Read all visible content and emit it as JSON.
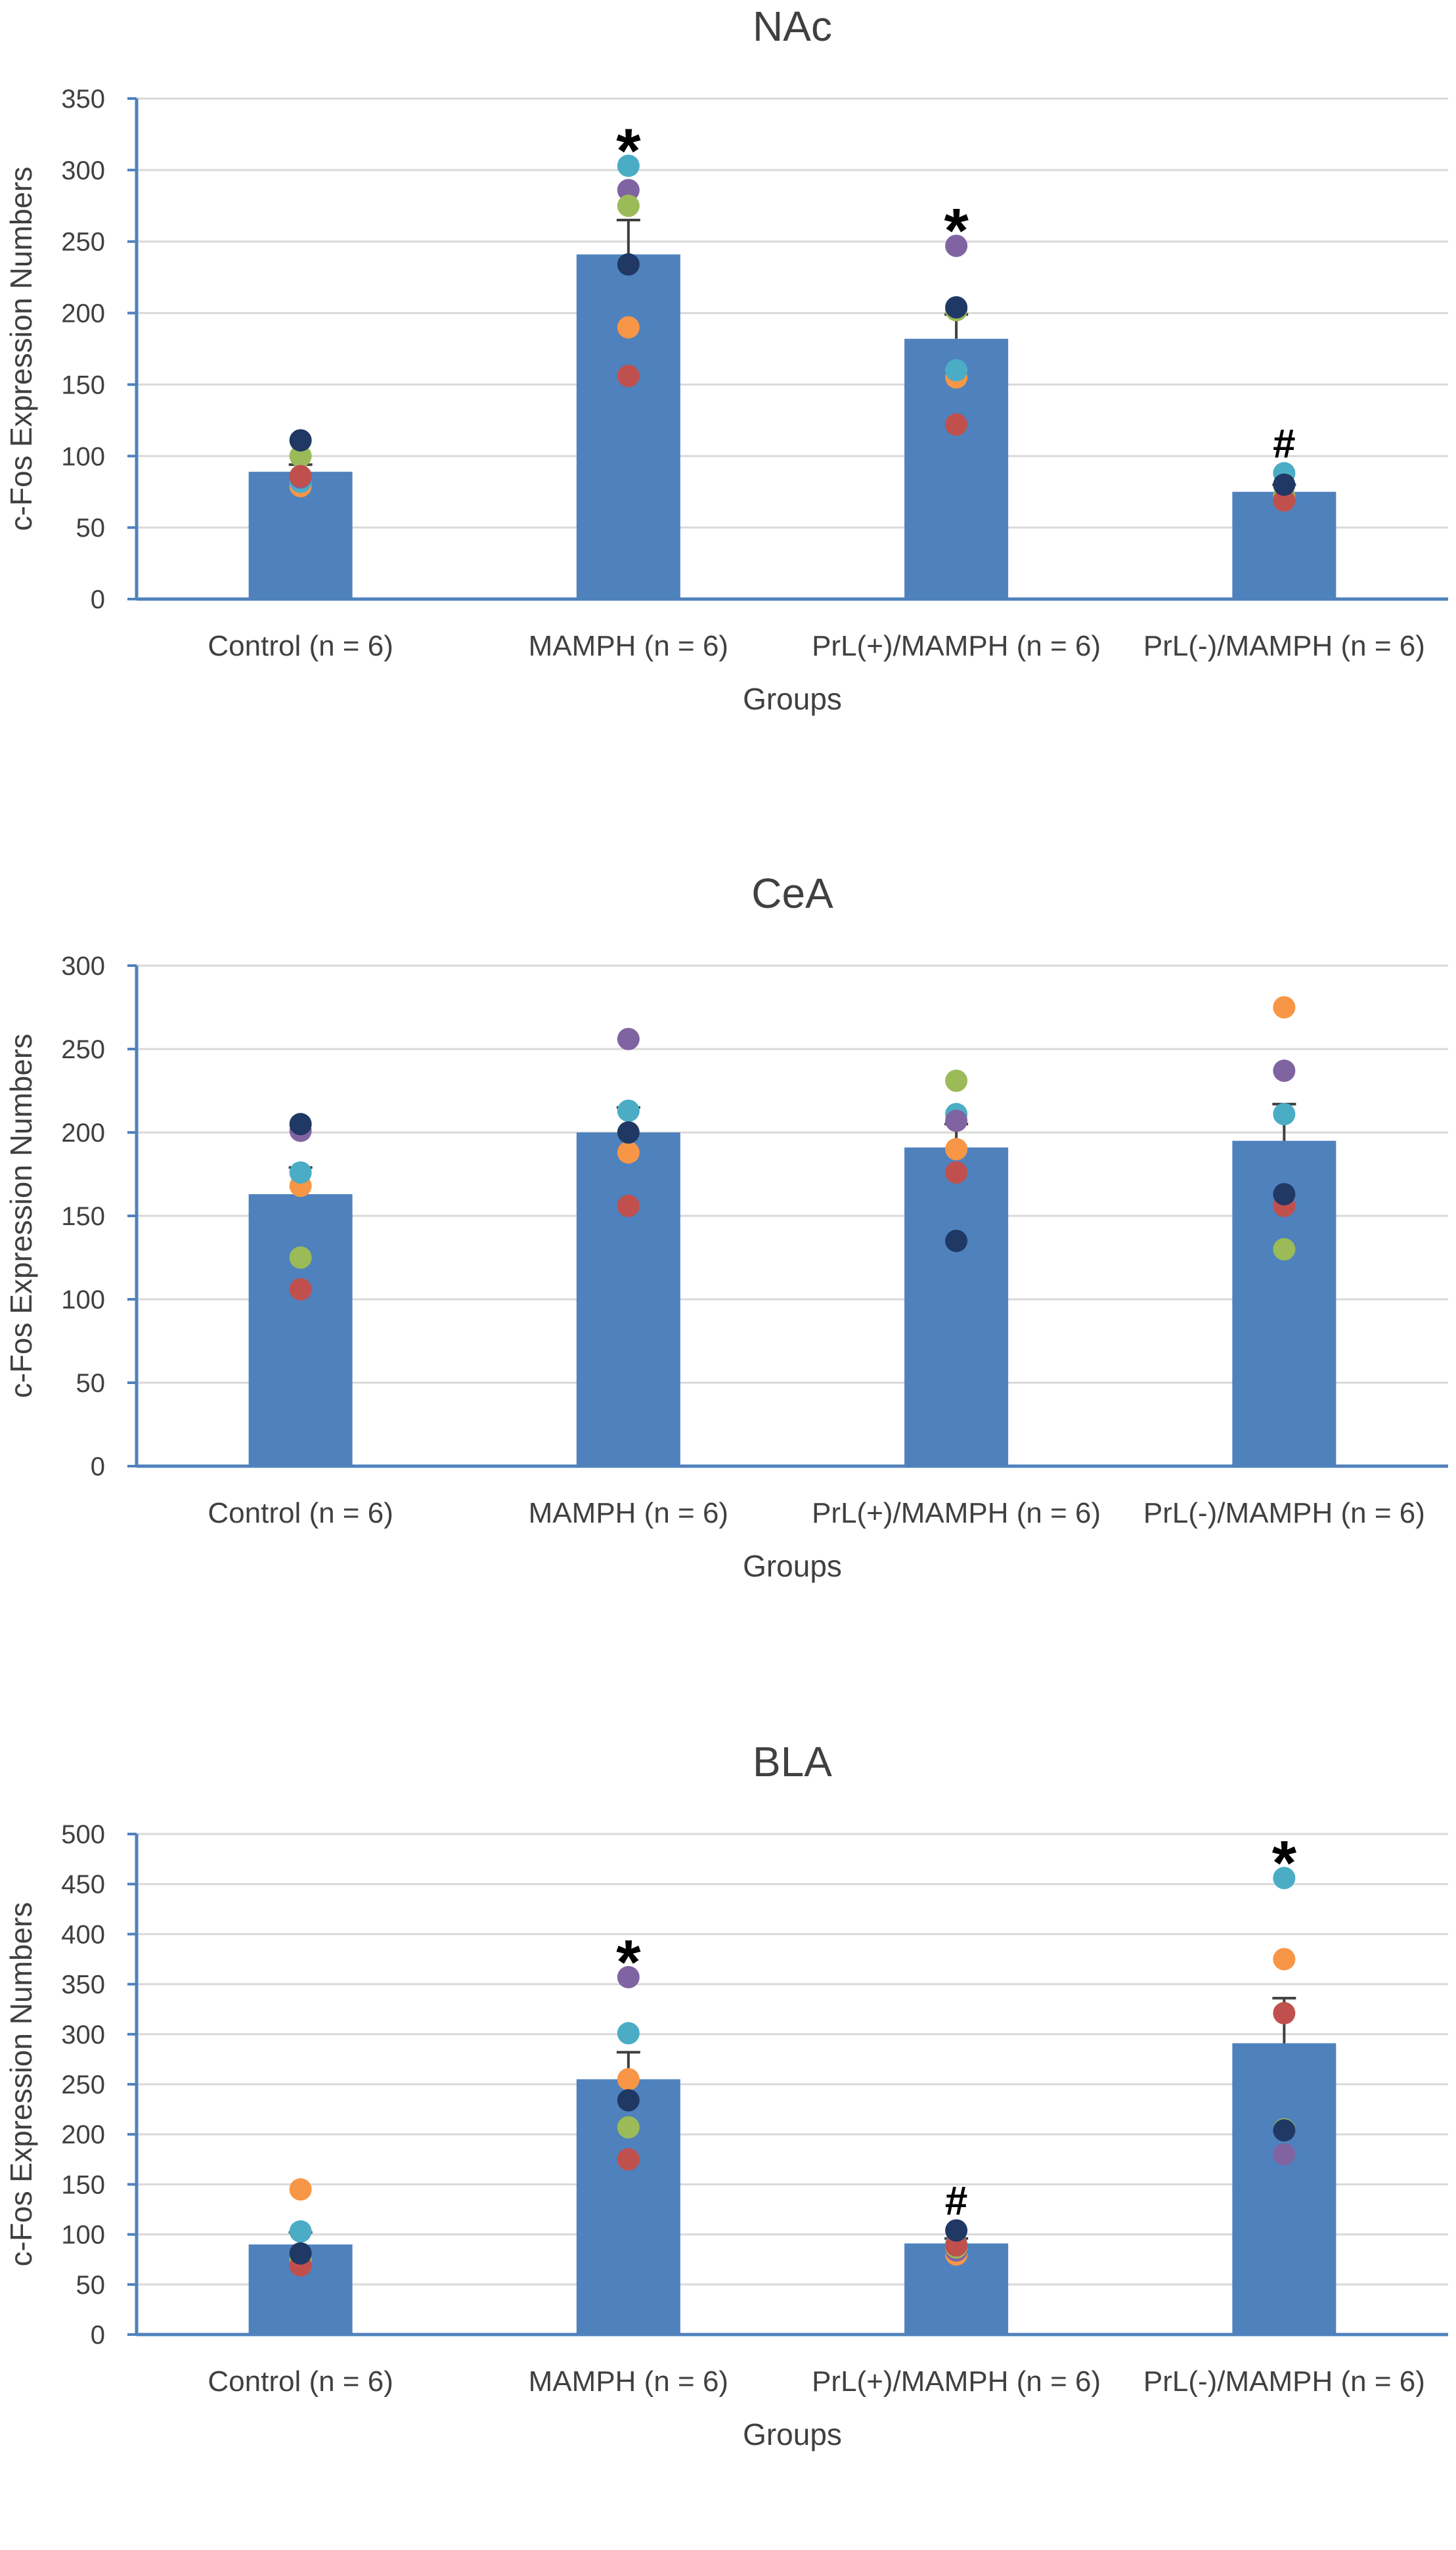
{
  "colors": {
    "bar": "#4f81bd",
    "axis": "#4f81bd",
    "grid": "#d9d9d9",
    "error": "#404040",
    "text": "#404040",
    "subjects": [
      "#f79646",
      "#4bacc6",
      "#8064a2",
      "#9bbb59",
      "#c0504d",
      "#1f3864"
    ]
  },
  "chart_data": [
    {
      "type": "bar",
      "title": "NAc",
      "xlabel": "Groups",
      "ylabel": "c-Fos Expression Numbers",
      "ylim": [
        0,
        350
      ],
      "yticks": [
        0,
        50,
        100,
        150,
        200,
        250,
        300,
        350
      ],
      "grid": true,
      "categories": [
        "Control (n = 6)",
        "MAMPH (n = 6)",
        "PrL(+)/MAMPH (n = 6)",
        "PrL(-)/MAMPH (n = 6)"
      ],
      "values": [
        89,
        241,
        182,
        75
      ],
      "errors": [
        5,
        24,
        17,
        5
      ],
      "points": [
        [
          79,
          82,
          85,
          100,
          86,
          111
        ],
        [
          190,
          303,
          286,
          275,
          156,
          234
        ],
        [
          155,
          160,
          247,
          202,
          122,
          204
        ],
        [
          69,
          88,
          71,
          72,
          69,
          80
        ]
      ],
      "significance": [
        "",
        "*",
        "*",
        "#"
      ]
    },
    {
      "type": "bar",
      "title": "CeA",
      "xlabel": "Groups",
      "ylabel": "c-Fos Expression Numbers",
      "ylim": [
        0,
        300
      ],
      "yticks": [
        0,
        50,
        100,
        150,
        200,
        250,
        300
      ],
      "grid": true,
      "categories": [
        "Control (n = 6)",
        "MAMPH (n = 6)",
        "PrL(+)/MAMPH (n = 6)",
        "PrL(-)/MAMPH (n = 6)"
      ],
      "values": [
        163,
        200,
        191,
        195
      ],
      "errors": [
        16,
        15,
        14,
        22
      ],
      "points": [
        [
          168,
          176,
          201,
          125,
          106,
          205
        ],
        [
          188,
          213,
          256,
          200,
          156,
          200
        ],
        [
          190,
          211,
          207,
          231,
          176,
          135
        ],
        [
          275,
          211,
          237,
          130,
          156,
          163
        ]
      ],
      "significance": [
        "",
        "",
        "",
        ""
      ]
    },
    {
      "type": "bar",
      "title": "BLA",
      "xlabel": "Groups",
      "ylabel": "c-Fos Expression Numbers",
      "ylim": [
        0,
        500
      ],
      "yticks": [
        0,
        50,
        100,
        150,
        200,
        250,
        300,
        350,
        400,
        450,
        500
      ],
      "grid": true,
      "categories": [
        "Control (n = 6)",
        "MAMPH (n = 6)",
        "PrL(+)/MAMPH (n = 6)",
        "PrL(-)/MAMPH (n = 6)"
      ],
      "values": [
        90,
        255,
        91,
        291
      ],
      "errors": [
        12,
        27,
        5,
        45
      ],
      "points": [
        [
          145,
          103,
          70,
          75,
          69,
          81
        ],
        [
          255,
          301,
          357,
          207,
          175,
          234
        ],
        [
          80,
          90,
          84,
          87,
          89,
          104
        ],
        [
          375,
          456,
          180,
          205,
          321,
          204
        ]
      ],
      "significance": [
        "",
        "*",
        "#",
        "*"
      ]
    }
  ]
}
